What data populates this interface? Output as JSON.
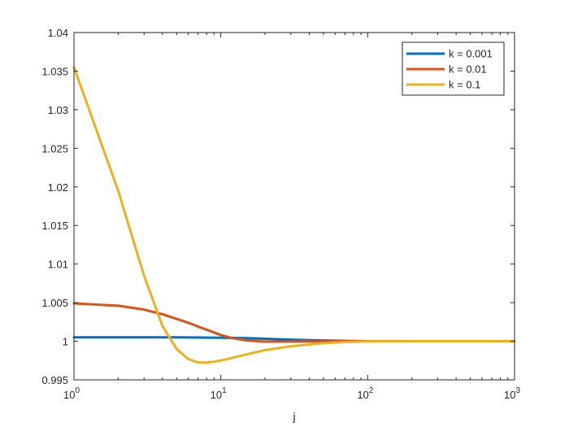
{
  "chart_data": {
    "type": "line",
    "title": "",
    "xlabel": "j",
    "ylabel": "",
    "xscale": "log",
    "xlim": [
      1,
      1000
    ],
    "ylim": [
      0.995,
      1.04
    ],
    "grid": false,
    "legend_position": "top-right",
    "y_ticks": [
      "0.995",
      "1",
      "1.005",
      "1.01",
      "1.015",
      "1.02",
      "1.025",
      "1.03",
      "1.035",
      "1.04"
    ],
    "x_ticks": [
      {
        "base": "10",
        "exp": "0",
        "value": 1
      },
      {
        "base": "10",
        "exp": "1",
        "value": 10
      },
      {
        "base": "10",
        "exp": "2",
        "value": 100
      },
      {
        "base": "10",
        "exp": "3",
        "value": 1000
      }
    ],
    "series": [
      {
        "name": "k = 0.001",
        "color": "#0072BD",
        "x": [
          1,
          2,
          3,
          5,
          7,
          10,
          15,
          20,
          30,
          50,
          70,
          100,
          200,
          500,
          1000
        ],
        "values": [
          1.0005,
          1.0005,
          1.0005,
          1.0005,
          1.00048,
          1.00045,
          1.0004,
          1.00032,
          1.0002,
          1.0001,
          1.00004,
          1.0,
          1.0,
          1.0,
          1.0
        ]
      },
      {
        "name": "k = 0.01",
        "color": "#D95319",
        "x": [
          1,
          2,
          3,
          4,
          5,
          6,
          7,
          8,
          10,
          12,
          15,
          20,
          30,
          50,
          70,
          100,
          200,
          500,
          1000
        ],
        "values": [
          1.0049,
          1.0046,
          1.0041,
          1.0035,
          1.0029,
          1.0024,
          1.0019,
          1.0015,
          1.0008,
          1.0004,
          1.0001,
          0.99995,
          0.99995,
          0.99998,
          1.0,
          1.0,
          1.0,
          1.0,
          1.0
        ]
      },
      {
        "name": "k = 0.1",
        "color": "#EDB120",
        "x": [
          1,
          2,
          3,
          4,
          5,
          6,
          7,
          8,
          9,
          10,
          12,
          15,
          20,
          30,
          50,
          70,
          100,
          200,
          500,
          1000
        ],
        "values": [
          1.0355,
          1.0195,
          1.0085,
          1.002,
          0.999,
          0.9977,
          0.99725,
          0.99722,
          0.99735,
          0.9975,
          0.99785,
          0.9983,
          0.99885,
          0.99935,
          0.99975,
          0.9999,
          0.99998,
          1.0,
          1.0,
          1.0
        ]
      }
    ]
  }
}
